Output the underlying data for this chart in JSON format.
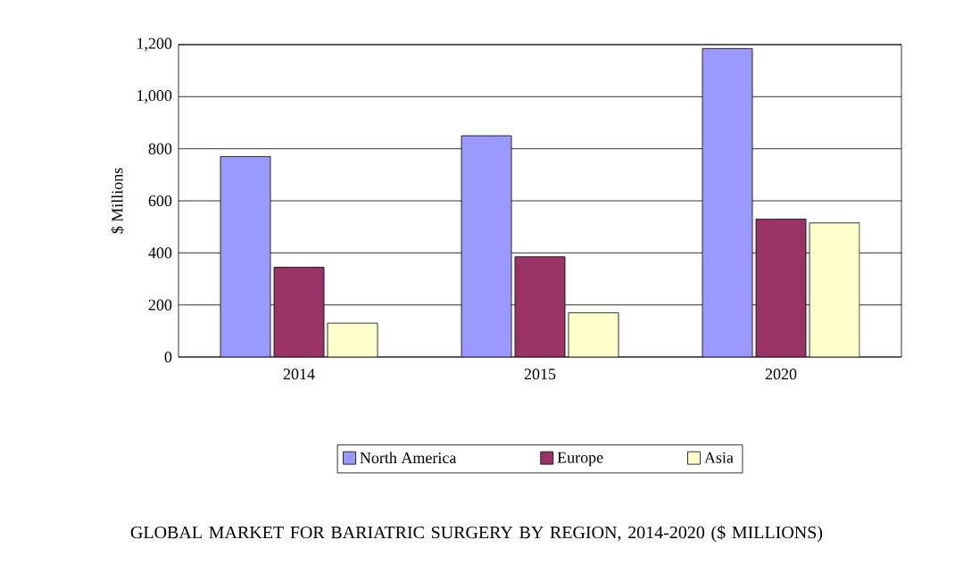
{
  "chart_data": {
    "type": "bar",
    "title": "GLOBAL MARKET FOR BARIATRIC SURGERY BY REGION, 2014-2020 ($ MILLIONS)",
    "ylabel": "$ Millions",
    "categories": [
      "2014",
      "2015",
      "2020"
    ],
    "series": [
      {
        "name": "North America",
        "color": "#9999ff",
        "values": [
          770,
          850,
          1185
        ]
      },
      {
        "name": "Europe",
        "color": "#993366",
        "values": [
          345,
          385,
          530
        ]
      },
      {
        "name": "Asia",
        "color": "#ffffcc",
        "values": [
          130,
          170,
          515
        ]
      }
    ],
    "ylim": [
      0,
      1200
    ],
    "yticks": [
      0,
      200,
      400,
      600,
      800,
      {
        "value": 1000,
        "label": "1,000"
      },
      {
        "value": 1200,
        "label": "1,200"
      }
    ],
    "grid": "y",
    "legend": "bottom"
  }
}
